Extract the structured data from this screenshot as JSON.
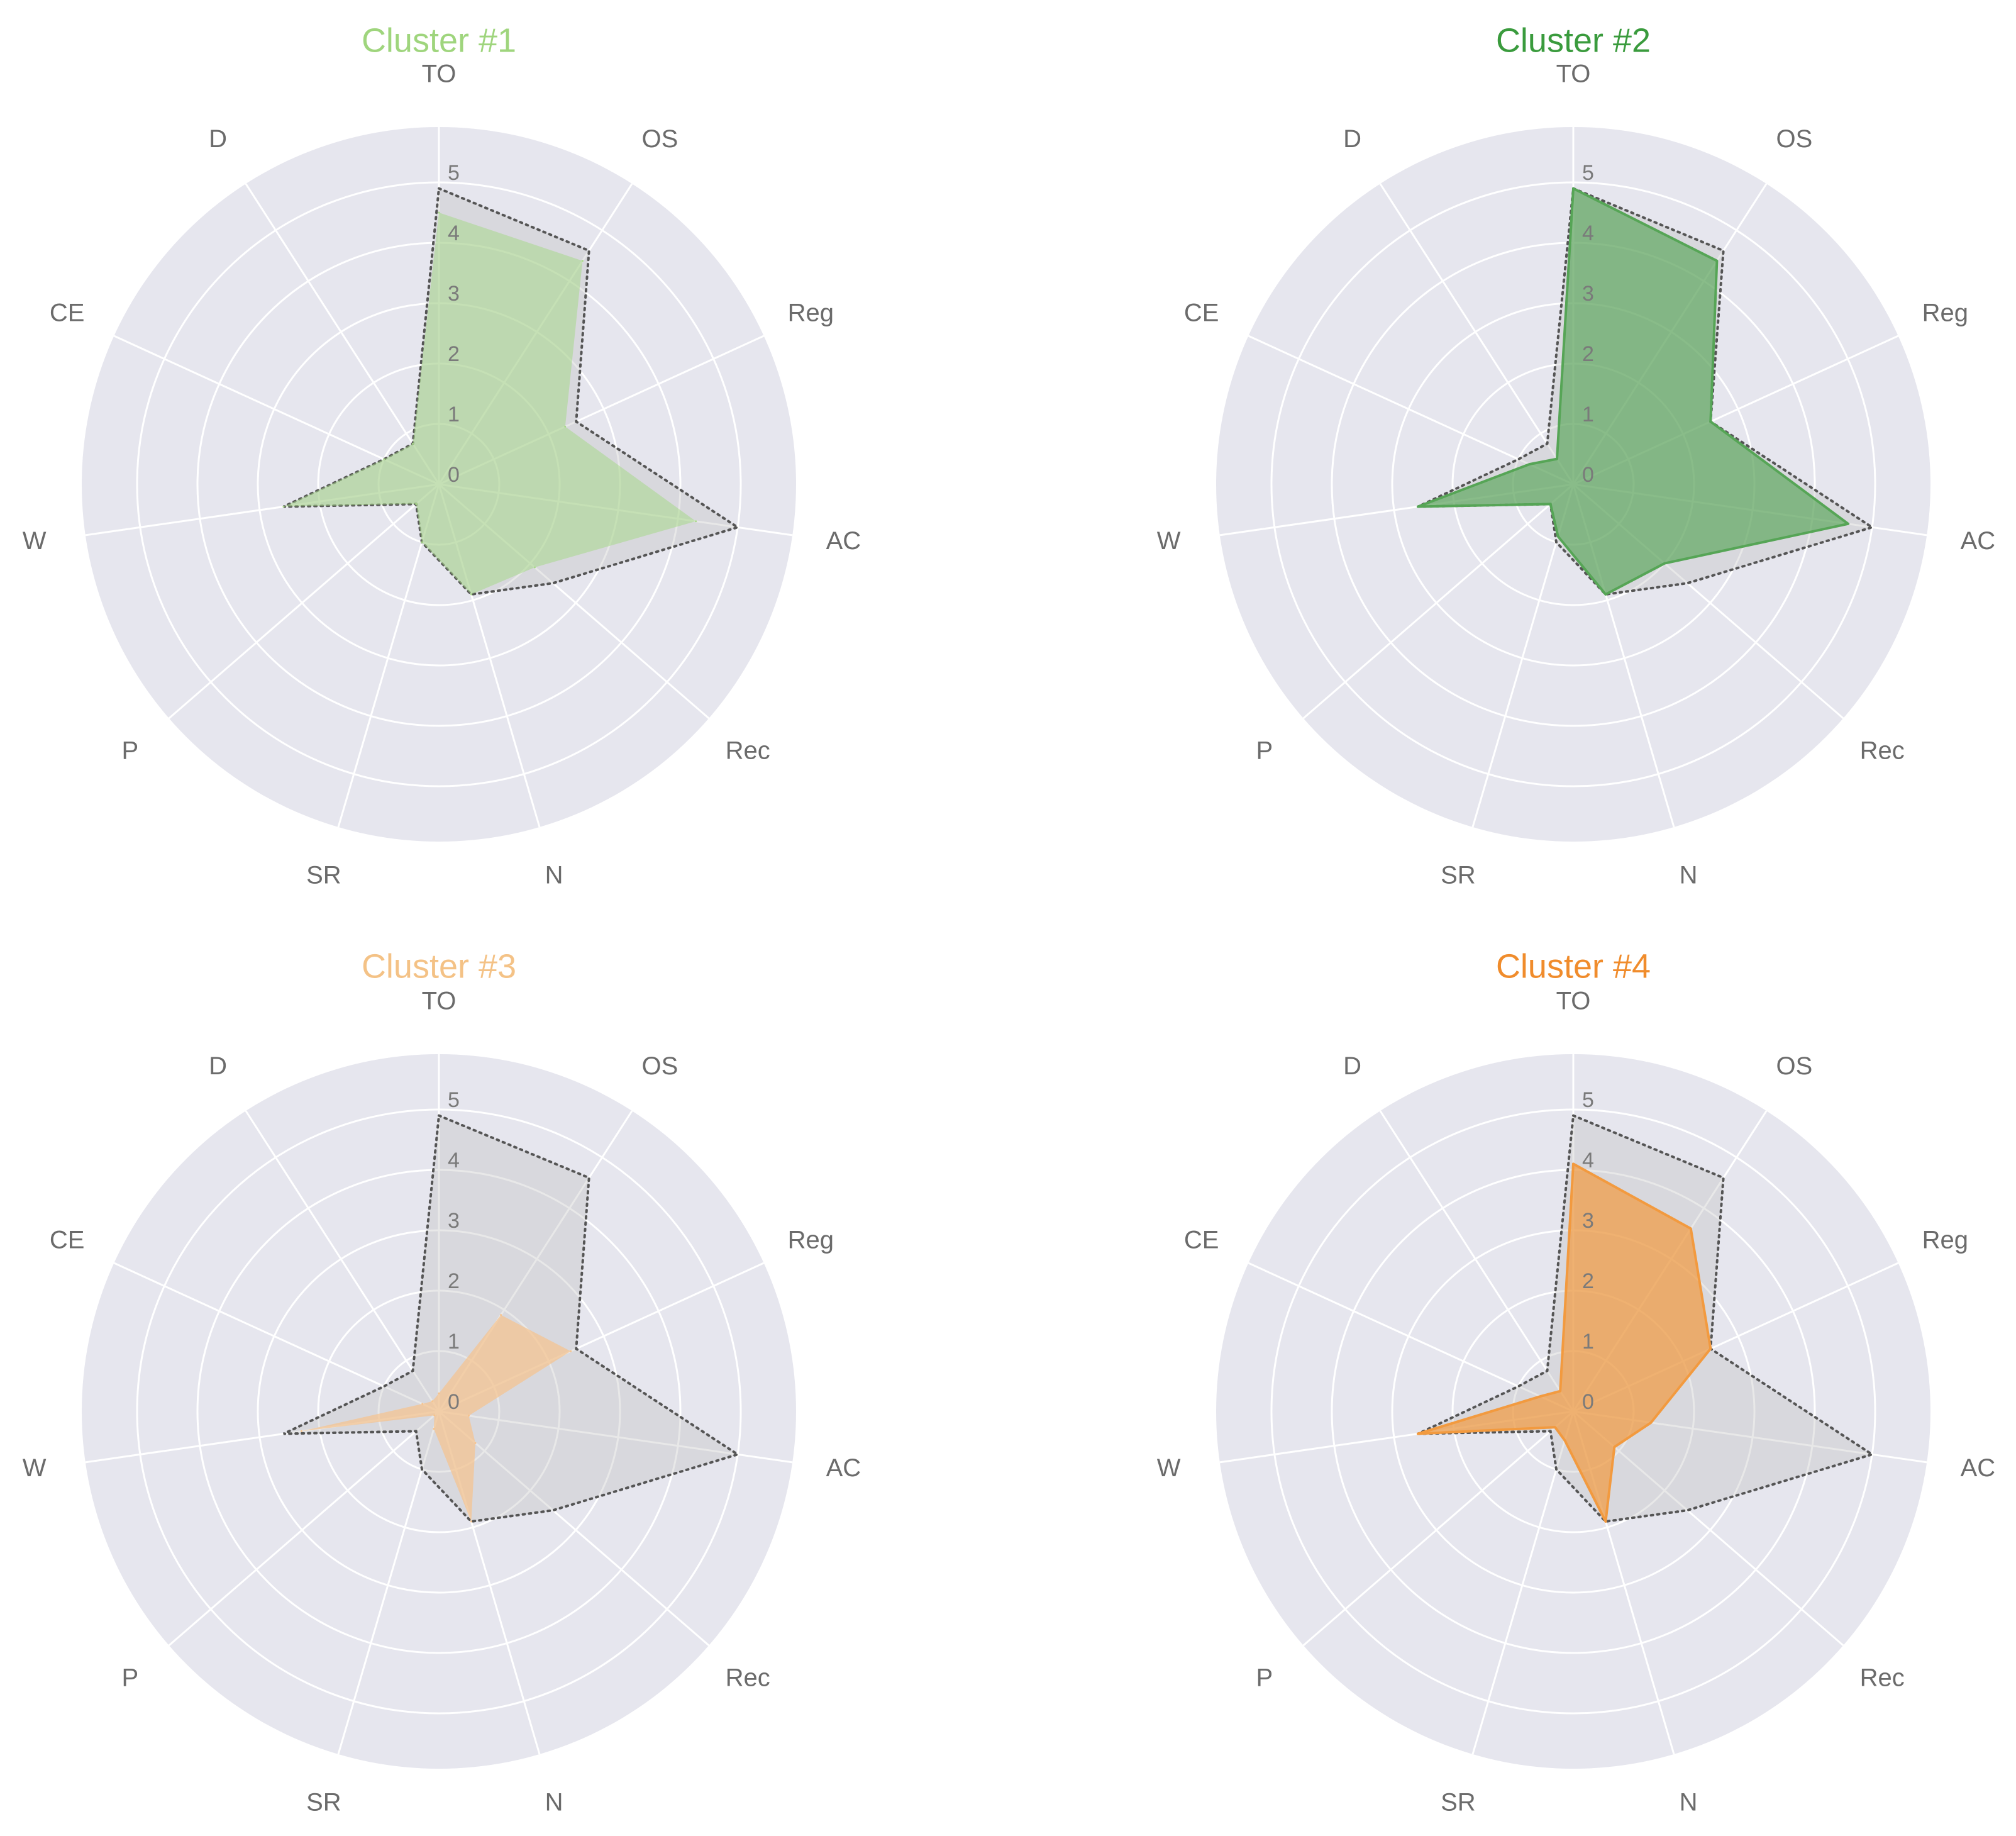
{
  "chart_data": [
    {
      "type": "radar",
      "title": "Cluster #1",
      "title_color": "#9fd57d",
      "color": "#a8d88a",
      "fill_opacity": 0.55,
      "line_visible": false,
      "axes": [
        "TO",
        "OS",
        "Reg",
        "AC",
        "Rec",
        "N",
        "SR",
        "P",
        "W",
        "CE",
        "D"
      ],
      "radial_ticks": [
        "0",
        "1",
        "2",
        "3",
        "4",
        "5"
      ],
      "rlim": [
        0,
        5
      ],
      "reference": [
        4.9,
        4.6,
        2.5,
        5.0,
        2.5,
        1.9,
        1.0,
        0.5,
        2.6,
        1.0,
        0.8
      ],
      "series": [
        {
          "values": [
            4.5,
            4.4,
            2.3,
            4.3,
            2.1,
            1.9,
            1.0,
            0.5,
            2.6,
            1.0,
            0.8
          ]
        }
      ]
    },
    {
      "type": "radar",
      "title": "Cluster #2",
      "title_color": "#3a9b3d",
      "color": "#56a556",
      "fill_opacity": 0.65,
      "line_visible": true,
      "axes": [
        "TO",
        "OS",
        "Reg",
        "AC",
        "Rec",
        "N",
        "SR",
        "P",
        "W",
        "CE",
        "D"
      ],
      "radial_ticks": [
        "0",
        "1",
        "2",
        "3",
        "4",
        "5"
      ],
      "rlim": [
        0,
        5
      ],
      "reference": [
        4.9,
        4.6,
        2.5,
        5.0,
        2.5,
        1.9,
        1.0,
        0.5,
        2.6,
        1.0,
        0.8
      ],
      "series": [
        {
          "values": [
            4.9,
            4.4,
            2.5,
            4.6,
            2.0,
            1.9,
            0.9,
            0.5,
            2.6,
            0.8,
            0.5
          ]
        }
      ]
    },
    {
      "type": "radar",
      "title": "Cluster #3",
      "title_color": "#f4c286",
      "color": "#f6c38d",
      "fill_opacity": 0.7,
      "line_visible": false,
      "axes": [
        "TO",
        "OS",
        "Reg",
        "AC",
        "Rec",
        "N",
        "SR",
        "P",
        "W",
        "CE",
        "D"
      ],
      "radial_ticks": [
        "0",
        "1",
        "2",
        "3",
        "4",
        "5"
      ],
      "rlim": [
        0,
        5
      ],
      "reference": [
        4.9,
        4.6,
        2.5,
        5.0,
        2.5,
        1.9,
        1.0,
        0.5,
        2.6,
        1.0,
        0.8
      ],
      "series": [
        {
          "values": [
            0.3,
            1.9,
            2.4,
            0.5,
            0.8,
            1.9,
            0.3,
            0.1,
            2.3,
            0.3,
            0.2
          ]
        }
      ]
    },
    {
      "type": "radar",
      "title": "Cluster #4",
      "title_color": "#f08c2c",
      "color": "#f29a3f",
      "fill_opacity": 0.7,
      "line_visible": true,
      "axes": [
        "TO",
        "OS",
        "Reg",
        "AC",
        "Rec",
        "N",
        "SR",
        "P",
        "W",
        "CE",
        "D"
      ],
      "radial_ticks": [
        "0",
        "1",
        "2",
        "3",
        "4",
        "5"
      ],
      "rlim": [
        0,
        5
      ],
      "reference": [
        4.9,
        4.6,
        2.5,
        5.0,
        2.5,
        1.9,
        1.0,
        0.5,
        2.6,
        1.0,
        0.8
      ],
      "series": [
        {
          "values": [
            4.1,
            3.6,
            2.5,
            1.3,
            0.9,
            1.9,
            0.5,
            0.4,
            2.6,
            0.6,
            0.4
          ]
        }
      ]
    }
  ]
}
